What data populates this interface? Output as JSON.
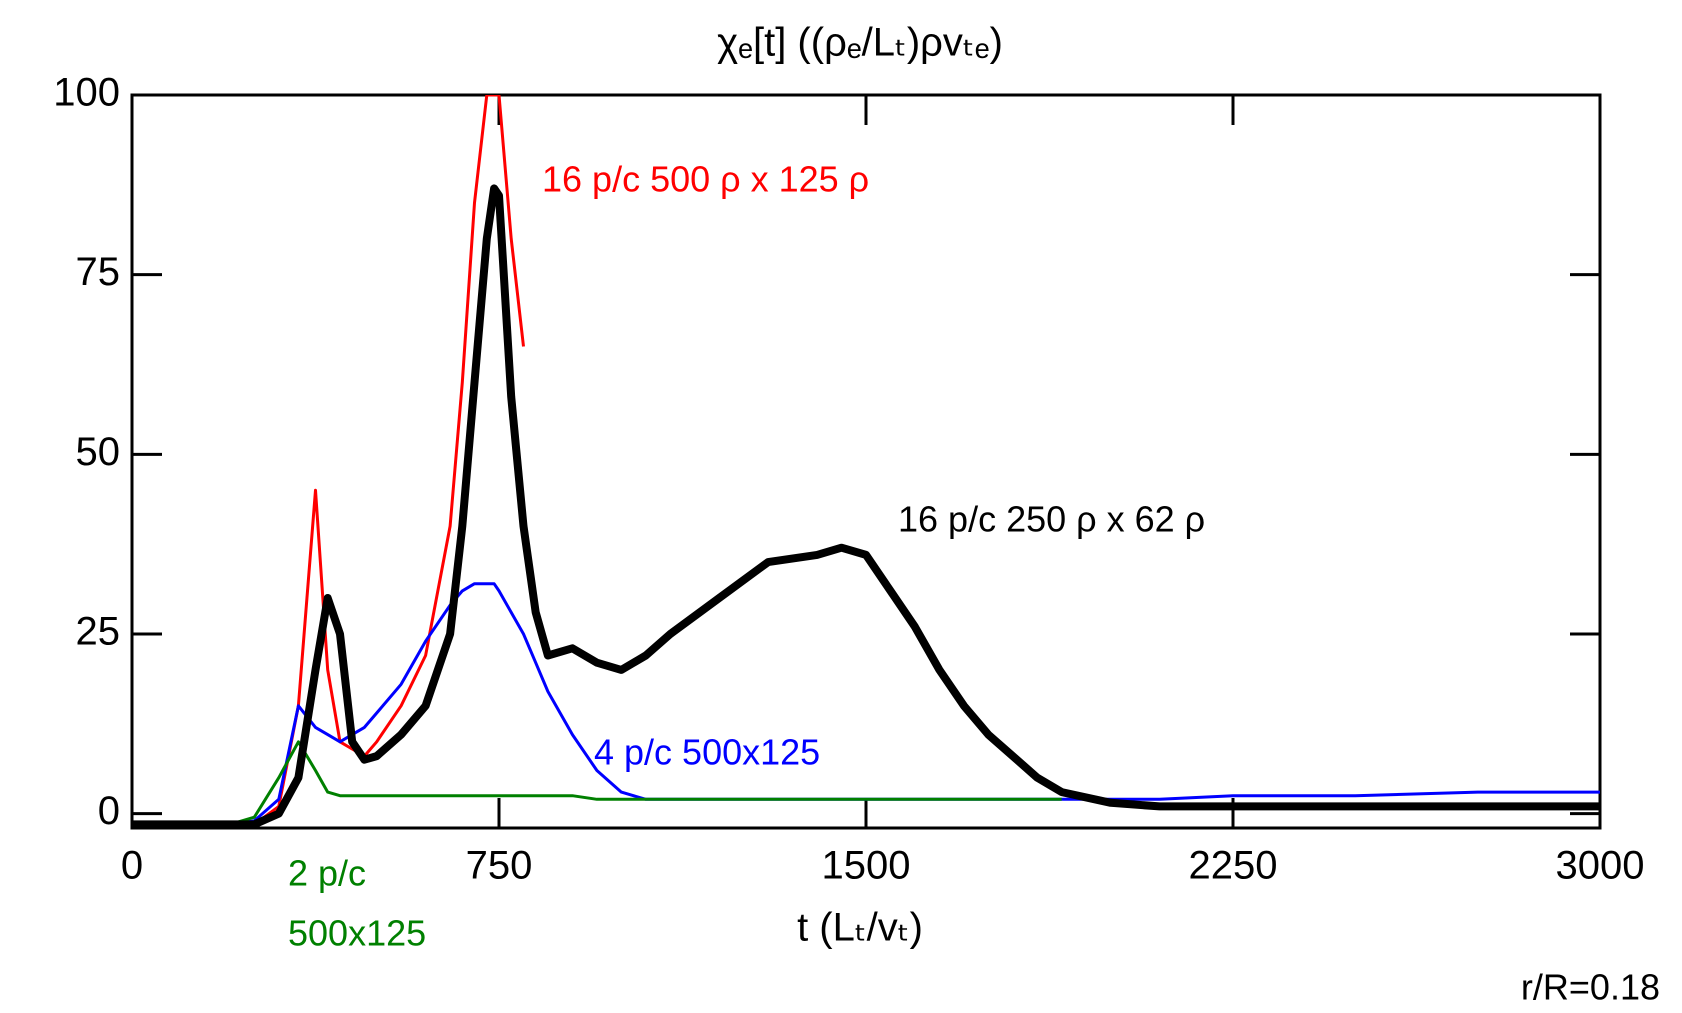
{
  "chart_data": {
    "type": "line",
    "title": "χₑ[t]  ((ρₑ/Lₜ)ρvₜₑ)",
    "x_label": "t  (Lₜ/vₜ)",
    "x": [
      0,
      100,
      200,
      250,
      300,
      340,
      375,
      400,
      425,
      450,
      475,
      500,
      550,
      600,
      650,
      675,
      700,
      725,
      740,
      750,
      775,
      800,
      825,
      850,
      900,
      950,
      1000,
      1050,
      1100,
      1200,
      1300,
      1400,
      1450,
      1500,
      1550,
      1600,
      1650,
      1700,
      1750,
      1800,
      1850,
      1900,
      2000,
      2100,
      2250,
      2500,
      2750,
      3000
    ],
    "series": [
      {
        "color": "#ff0000",
        "line_width": 3,
        "values": [
          -1.5,
          -1.5,
          -1.5,
          -1.5,
          1,
          15,
          45,
          20,
          10,
          9,
          8,
          10,
          15,
          22,
          40,
          60,
          85,
          100,
          100,
          100,
          80,
          65,
          null,
          null,
          null,
          null,
          null,
          null,
          null,
          null,
          null,
          null,
          null,
          null,
          null,
          null,
          null,
          null,
          null,
          null,
          null,
          null,
          null,
          null,
          null,
          null,
          null,
          null
        ]
      },
      {
        "color": "#0000ff",
        "line_width": 3,
        "values": [
          -1.5,
          -1.5,
          -1.5,
          -1,
          2,
          15,
          12,
          11,
          10,
          11,
          12,
          14,
          18,
          24,
          29,
          31,
          32,
          32,
          32,
          31,
          28,
          25,
          21,
          17,
          11,
          6,
          3,
          2,
          2,
          2,
          2,
          2,
          2,
          2,
          2,
          2,
          2,
          2,
          2,
          2,
          2,
          2,
          2,
          2,
          2.5,
          2.5,
          3,
          3
        ]
      },
      {
        "color": "#008000",
        "line_width": 3,
        "values": [
          -1.5,
          -1.5,
          -1.5,
          -0.5,
          5,
          10,
          6,
          3,
          2.5,
          2.5,
          2.5,
          2.5,
          2.5,
          2.5,
          2.5,
          2.5,
          2.5,
          2.5,
          2.5,
          2.5,
          2.5,
          2.5,
          2.5,
          2.5,
          2.5,
          2,
          2,
          2,
          2,
          2,
          2,
          2,
          2,
          2,
          2,
          2,
          2,
          2,
          2,
          2,
          2,
          2,
          null,
          null,
          null,
          null,
          null,
          null
        ]
      },
      {
        "color": "#000000",
        "line_width": 8,
        "values": [
          -1.5,
          -1.5,
          -1.5,
          -1.5,
          0,
          5,
          20,
          30,
          25,
          10,
          7.5,
          8,
          11,
          15,
          25,
          40,
          60,
          80,
          87,
          86,
          58,
          40,
          28,
          22,
          23,
          21,
          20,
          22,
          25,
          30,
          35,
          36,
          37,
          36,
          31,
          26,
          20,
          15,
          11,
          8,
          5,
          3,
          1.5,
          1,
          1,
          1,
          1,
          1
        ]
      }
    ],
    "xlim": [
      0,
      3000
    ],
    "ylim": [
      -2,
      100
    ],
    "xticks": [
      0,
      750,
      1500,
      2250,
      3000
    ],
    "yticks": [
      0,
      25,
      50,
      75,
      100
    ],
    "annotations": [
      {
        "text": "16 p/c 500 ρ x 125 ρ",
        "color": "#ff0000"
      },
      {
        "text": "16 p/c 250 ρ x 62 ρ",
        "color": "#000000"
      },
      {
        "text": "4 p/c 500x125",
        "color": "#0000ff"
      },
      {
        "text": "2 p/c",
        "color": "#008000"
      },
      {
        "text": "500x125",
        "color": "#008000"
      },
      {
        "text": "r/R=0.18",
        "color": "#000000"
      }
    ]
  }
}
